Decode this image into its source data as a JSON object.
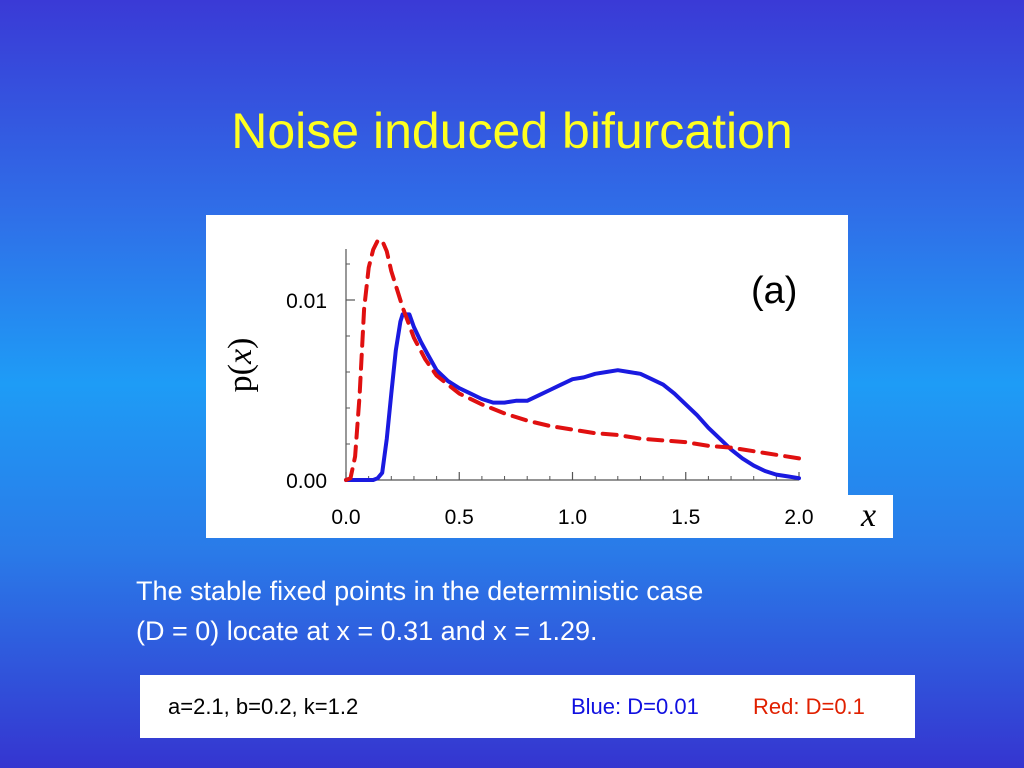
{
  "slide": {
    "title": "Noise induced bifurcation",
    "caption_line1": "The stable fixed points in the deterministic case",
    "caption_line2": "(D = 0) locate at x = 0.31 and x = 1.29.",
    "params": "a=2.1, b=0.2, k=1.2",
    "blue_label": "Blue: D=0.01",
    "red_label": "Red: D=0.1"
  },
  "chart_data": {
    "type": "line",
    "panel_label": "(a)",
    "xlabel": "x",
    "ylabel": "p(x)",
    "xlim": [
      0.0,
      2.0
    ],
    "ylim": [
      0.0,
      0.0135
    ],
    "xticks": [
      0.0,
      0.5,
      1.0,
      1.5,
      2.0
    ],
    "xtick_labels": [
      "0.0",
      "0.5",
      "1.0",
      "1.5",
      "2.0"
    ],
    "yticks": [
      0.0,
      0.01
    ],
    "ytick_labels": [
      "0.00",
      "0.01"
    ],
    "grid": false,
    "series": [
      {
        "color": "#1a1ae0",
        "style": "solid",
        "x": [
          0.0,
          0.1,
          0.12,
          0.14,
          0.16,
          0.18,
          0.2,
          0.22,
          0.24,
          0.25,
          0.26,
          0.28,
          0.3,
          0.33,
          0.36,
          0.4,
          0.45,
          0.5,
          0.55,
          0.6,
          0.65,
          0.7,
          0.75,
          0.8,
          0.85,
          0.9,
          0.95,
          1.0,
          1.05,
          1.1,
          1.15,
          1.2,
          1.25,
          1.3,
          1.35,
          1.4,
          1.45,
          1.5,
          1.55,
          1.6,
          1.65,
          1.7,
          1.75,
          1.8,
          1.85,
          1.9,
          1.95,
          2.0
        ],
        "y": [
          0.0,
          0.0,
          0.0,
          0.0001,
          0.0004,
          0.0023,
          0.0048,
          0.0072,
          0.0088,
          0.0092,
          0.0092,
          0.0092,
          0.0085,
          0.0077,
          0.007,
          0.0061,
          0.0055,
          0.0051,
          0.0048,
          0.0045,
          0.0043,
          0.0043,
          0.0044,
          0.0044,
          0.0047,
          0.005,
          0.0053,
          0.0056,
          0.0057,
          0.0059,
          0.006,
          0.0061,
          0.006,
          0.0059,
          0.0056,
          0.0053,
          0.0048,
          0.0042,
          0.0036,
          0.0029,
          0.0023,
          0.0017,
          0.0012,
          0.0008,
          0.0005,
          0.0003,
          0.0002,
          0.0001
        ]
      },
      {
        "color": "#e01010",
        "style": "dashed",
        "x": [
          0.0,
          0.02,
          0.04,
          0.06,
          0.08,
          0.1,
          0.12,
          0.14,
          0.16,
          0.18,
          0.2,
          0.25,
          0.3,
          0.35,
          0.4,
          0.5,
          0.6,
          0.7,
          0.8,
          0.9,
          1.0,
          1.1,
          1.2,
          1.3,
          1.4,
          1.5,
          1.6,
          1.7,
          1.8,
          1.9,
          2.0
        ],
        "y": [
          0.0,
          0.0001,
          0.0013,
          0.0047,
          0.0095,
          0.0118,
          0.0128,
          0.0133,
          0.0133,
          0.0127,
          0.0116,
          0.0096,
          0.0079,
          0.0067,
          0.0058,
          0.0048,
          0.0042,
          0.0037,
          0.0033,
          0.003,
          0.0028,
          0.0026,
          0.0025,
          0.0023,
          0.0022,
          0.0021,
          0.0019,
          0.0018,
          0.0016,
          0.0014,
          0.0012
        ]
      }
    ]
  }
}
